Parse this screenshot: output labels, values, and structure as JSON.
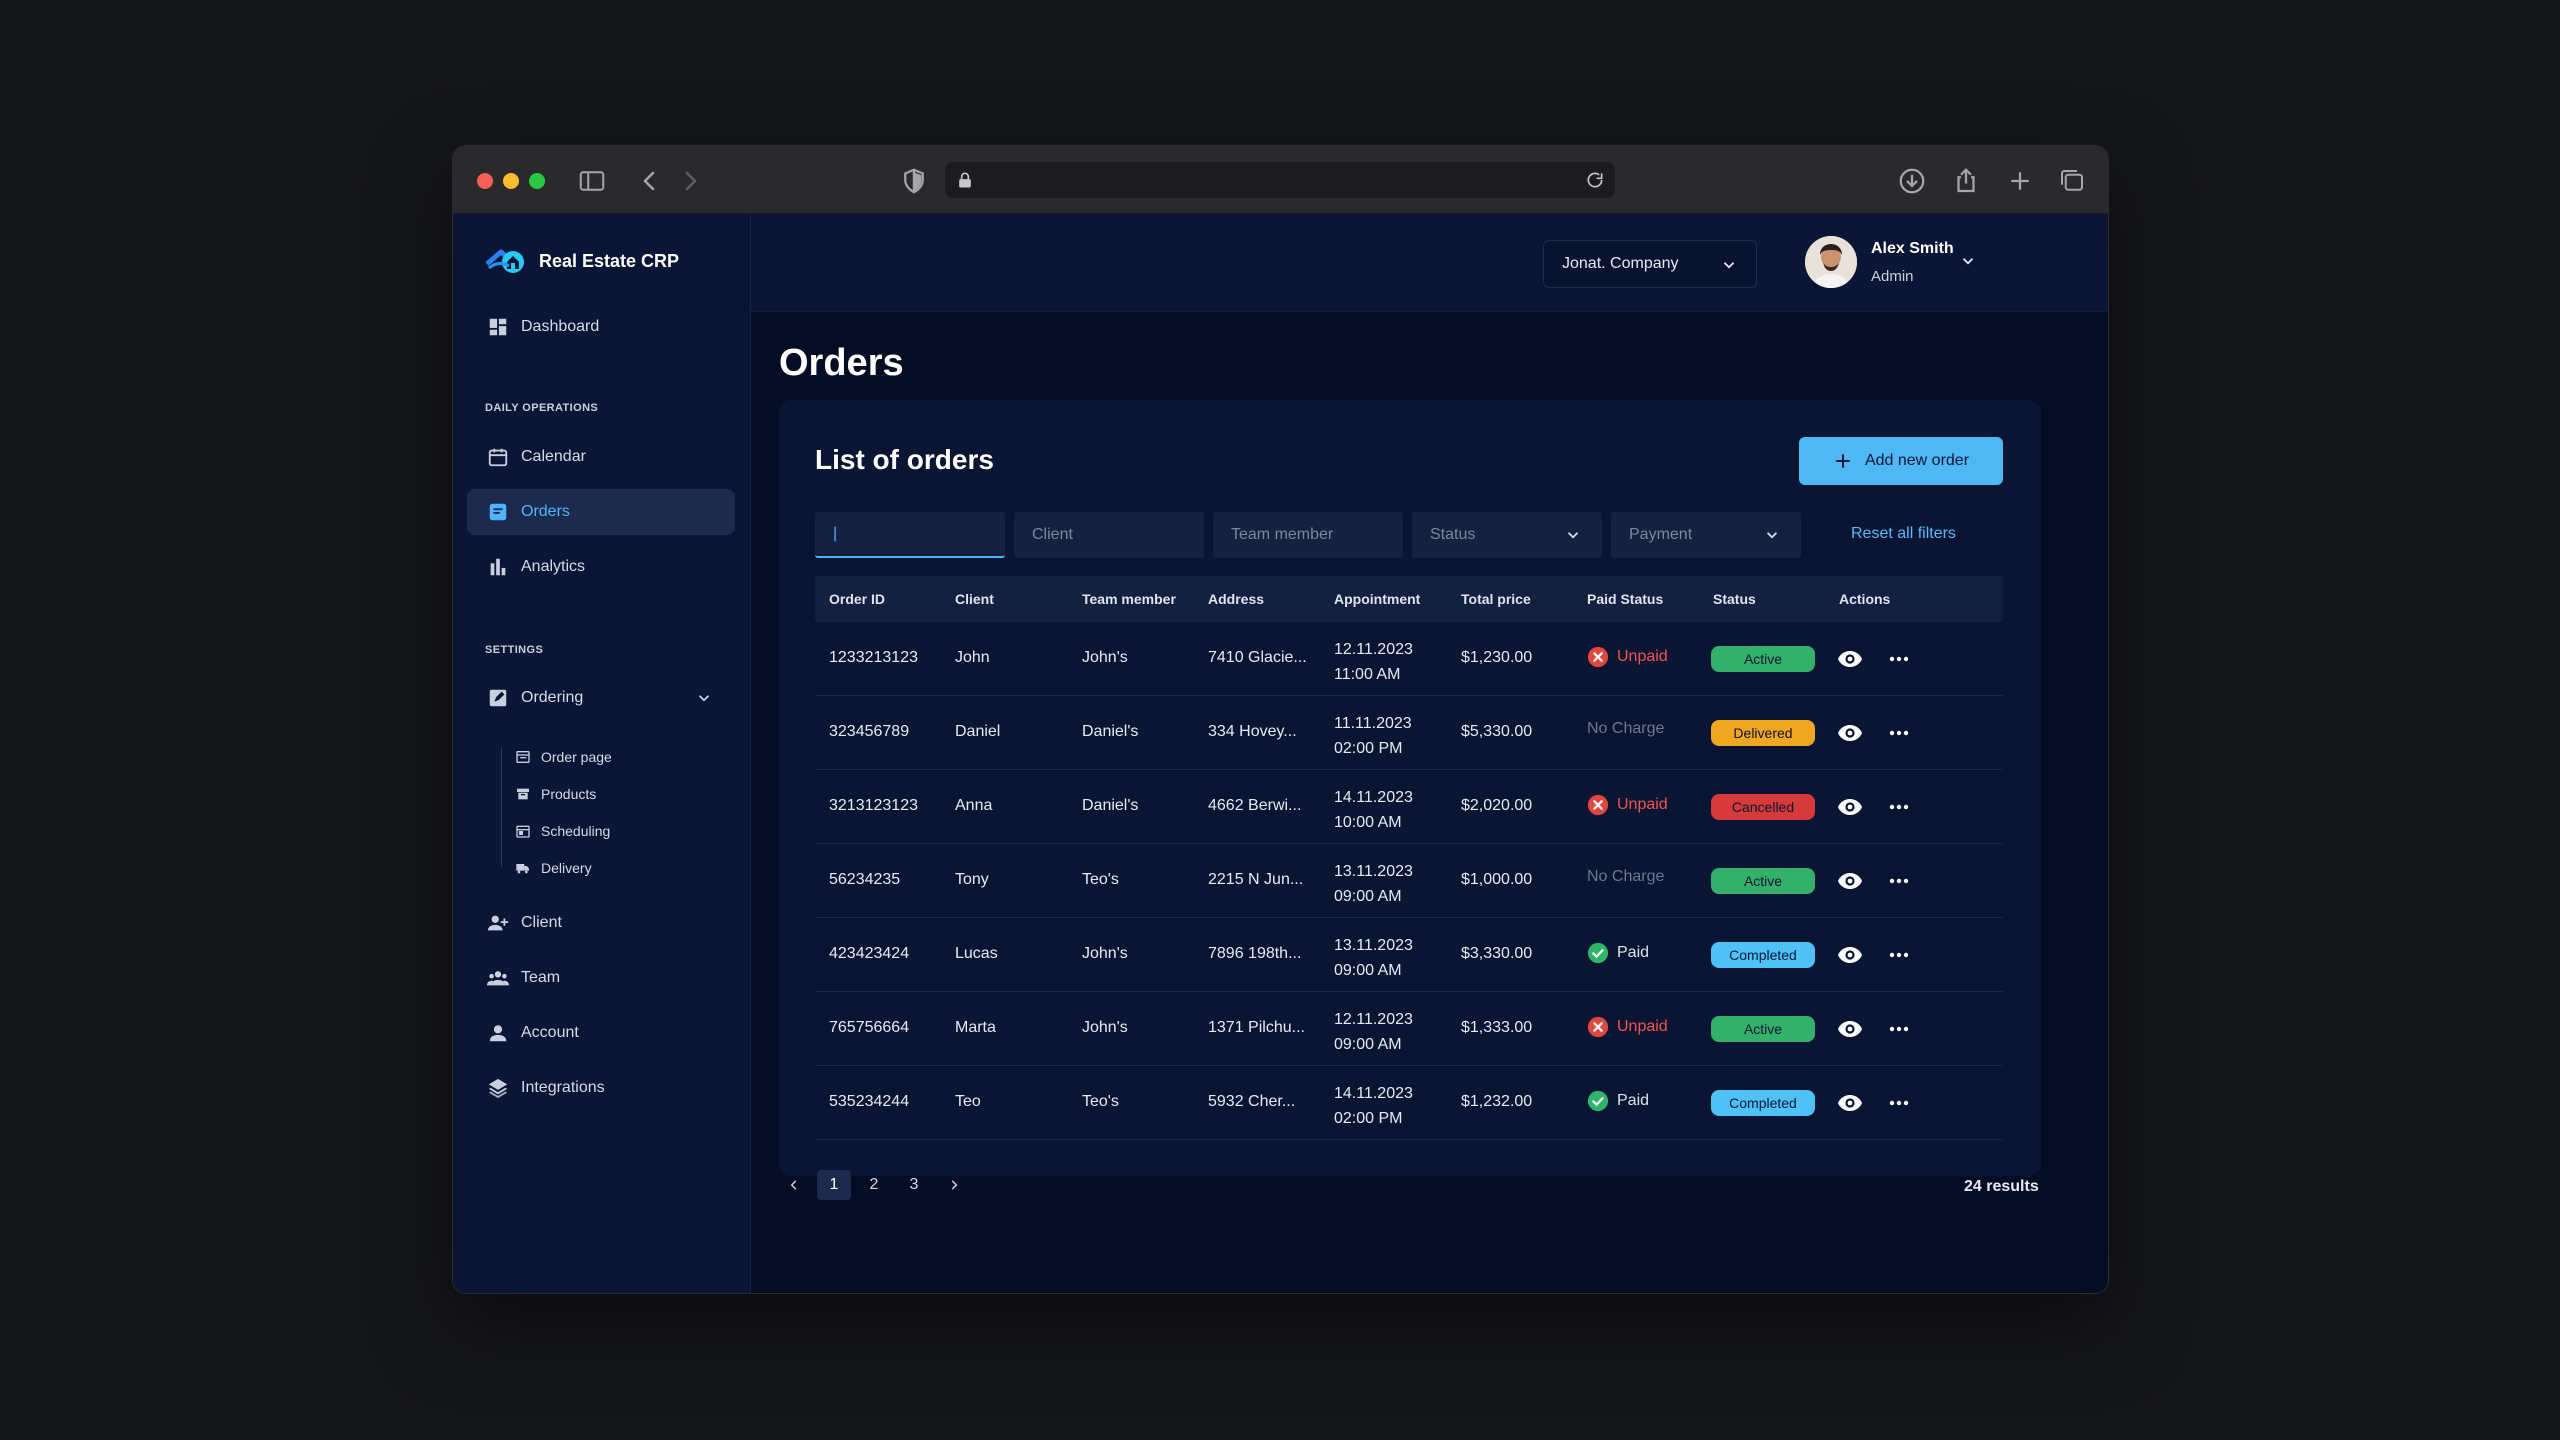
{
  "colors": {
    "accent": "#4db5ff",
    "active": "#33b06a",
    "delivered": "#f0a621",
    "cancelled": "#d63a3a",
    "completed": "#4ec2f7",
    "unpaid": "#f2554e",
    "paid": "#2fb56a"
  },
  "app": {
    "name": "Real Estate CRP"
  },
  "sidebar": {
    "dashboard": "Dashboard",
    "section_daily": "DAILY OPERATIONS",
    "calendar": "Calendar",
    "orders": "Orders",
    "analytics": "Analytics",
    "section_settings": "SETTINGS",
    "ordering": "Ordering",
    "sub": {
      "order_page": "Order page",
      "products": "Products",
      "scheduling": "Scheduling",
      "delivery": "Delivery"
    },
    "client": "Client",
    "team": "Team",
    "account": "Account",
    "integrations": "Integrations"
  },
  "topbar": {
    "company": "Jonat. Company",
    "user_name": "Alex Smith",
    "user_role": "Admin"
  },
  "page": {
    "title": "Orders",
    "card_title": "List of orders",
    "add_button": "Add new order"
  },
  "filters": {
    "search_value": "|",
    "client_placeholder": "Client",
    "team_placeholder": "Team member",
    "status_label": "Status",
    "payment_label": "Payment",
    "reset": "Reset all filters"
  },
  "table": {
    "headers": {
      "order_id": "Order ID",
      "client": "Client",
      "team": "Team member",
      "address": "Address",
      "appointment": "Appointment",
      "price": "Total price",
      "paid": "Paid Status",
      "status": "Status",
      "actions": "Actions"
    },
    "rows": [
      {
        "id": "1233213123",
        "client": "John",
        "team": "John's",
        "address": "7410 Glacie...",
        "date": "12.11.2023",
        "time": "11:00 AM",
        "price": "$1,230.00",
        "paid": "Unpaid",
        "paid_type": "unpaid",
        "status": "Active",
        "status_type": "active"
      },
      {
        "id": "323456789",
        "client": "Daniel",
        "team": "Daniel's",
        "address": "334 Hovey...",
        "date": "11.11.2023",
        "time": "02:00 PM",
        "price": "$5,330.00",
        "paid": "No Charge",
        "paid_type": "nocharge",
        "status": "Delivered",
        "status_type": "delivered"
      },
      {
        "id": "3213123123",
        "client": "Anna",
        "team": "Daniel's",
        "address": "4662 Berwi...",
        "date": "14.11.2023",
        "time": "10:00 AM",
        "price": "$2,020.00",
        "paid": "Unpaid",
        "paid_type": "unpaid",
        "status": "Cancelled",
        "status_type": "cancelled"
      },
      {
        "id": "56234235",
        "client": "Tony",
        "team": "Teo's",
        "address": "2215 N Jun...",
        "date": "13.11.2023",
        "time": "09:00 AM",
        "price": "$1,000.00",
        "paid": "No Charge",
        "paid_type": "nocharge",
        "status": "Active",
        "status_type": "active"
      },
      {
        "id": "423423424",
        "client": "Lucas",
        "team": "John's",
        "address": "7896 198th...",
        "date": "13.11.2023",
        "time": "09:00 AM",
        "price": "$3,330.00",
        "paid": "Paid",
        "paid_type": "paid",
        "status": "Completed",
        "status_type": "completed"
      },
      {
        "id": "765756664",
        "client": "Marta",
        "team": "John's",
        "address": "1371 Pilchu...",
        "date": "12.11.2023",
        "time": "09:00 AM",
        "price": "$1,333.00",
        "paid": "Unpaid",
        "paid_type": "unpaid",
        "status": "Active",
        "status_type": "active"
      },
      {
        "id": "535234244",
        "client": "Teo",
        "team": "Teo's",
        "address": "5932 Cher...",
        "date": "14.11.2023",
        "time": "02:00 PM",
        "price": "$1,232.00",
        "paid": "Paid",
        "paid_type": "paid",
        "status": "Completed",
        "status_type": "completed"
      }
    ]
  },
  "pagination": {
    "pages": [
      "1",
      "2",
      "3"
    ],
    "current": "1",
    "results": "24 results"
  }
}
